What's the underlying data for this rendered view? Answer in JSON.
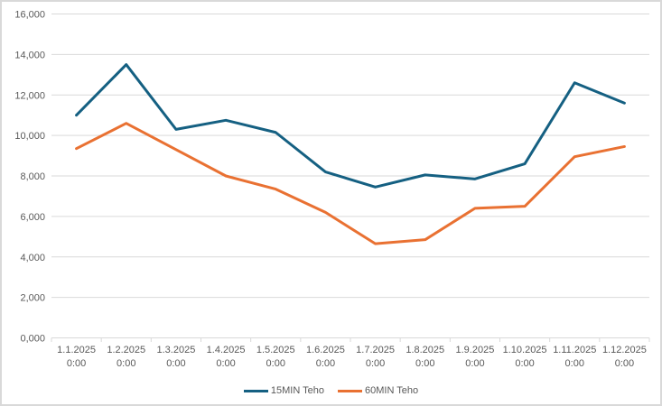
{
  "chart_data": {
    "type": "line",
    "title": "",
    "xlabel": "",
    "ylabel": "",
    "categories": [
      "1.1.2025",
      "1.2.2025",
      "1.3.2025",
      "1.4.2025",
      "1.5.2025",
      "1.6.2025",
      "1.7.2025",
      "1.8.2025",
      "1.9.2025",
      "1.10.2025",
      "1.11.2025",
      "1.12.2025"
    ],
    "category_sublabel": "0:00",
    "series": [
      {
        "name": "15MIN Teho",
        "color": "#156082",
        "values": [
          11000,
          13500,
          10300,
          10750,
          10150,
          8200,
          7450,
          8050,
          7850,
          8600,
          12600,
          11600
        ]
      },
      {
        "name": "60MIN Teho",
        "color": "#E97132",
        "values": [
          9350,
          10600,
          9300,
          8000,
          7350,
          6200,
          4650,
          4850,
          6400,
          6500,
          8950,
          9450
        ]
      }
    ],
    "ylim": [
      0,
      16000
    ],
    "ytick_step": 2000,
    "ytick_labels": [
      "0,000",
      "2,000",
      "4,000",
      "6,000",
      "8,000",
      "10,000",
      "12,000",
      "14,000",
      "16,000"
    ],
    "grid": true,
    "legend_position": "bottom"
  },
  "colors": {
    "gridline": "#D9D9D9",
    "axis_line": "#D9D9D9",
    "axis_text": "#595959",
    "frame_border": "#D9D9D9",
    "background": "#FFFFFF"
  }
}
